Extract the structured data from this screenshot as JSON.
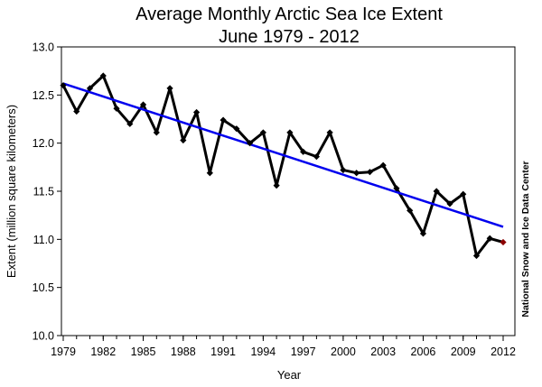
{
  "chart_data": {
    "type": "line",
    "title": "Average Monthly Arctic Sea Ice Extent",
    "subtitle": "June 1979 - 2012",
    "xlabel": "Year",
    "ylabel": "Extent (million square kilometers)",
    "credit": "National Snow and Ice Data Center",
    "xlim": [
      1979,
      2012
    ],
    "ylim": [
      10.0,
      13.0
    ],
    "x_ticks": [
      1979,
      1982,
      1985,
      1988,
      1991,
      1994,
      1997,
      2000,
      2003,
      2006,
      2009,
      2012
    ],
    "y_ticks": [
      "10.0",
      "10.5",
      "11.0",
      "11.5",
      "12.0",
      "12.5",
      "13.0"
    ],
    "grid": false,
    "x": [
      1979,
      1980,
      1981,
      1982,
      1983,
      1984,
      1985,
      1986,
      1987,
      1988,
      1989,
      1990,
      1991,
      1992,
      1993,
      1994,
      1995,
      1996,
      1997,
      1998,
      1999,
      2000,
      2001,
      2002,
      2003,
      2004,
      2005,
      2006,
      2007,
      2008,
      2009,
      2010,
      2011,
      2012
    ],
    "series": [
      {
        "values": [
          12.6,
          12.33,
          12.57,
          12.7,
          12.36,
          12.2,
          12.4,
          12.11,
          12.57,
          12.03,
          12.32,
          11.69,
          12.24,
          12.15,
          12.0,
          12.11,
          11.56,
          12.11,
          11.91,
          11.86,
          12.11,
          11.72,
          11.69,
          11.7,
          11.77,
          11.53,
          11.3,
          11.06,
          11.5,
          11.37,
          11.47,
          10.83,
          11.01,
          10.97
        ],
        "color": "#000000",
        "last_point_color": "#8b0000"
      }
    ],
    "trend": {
      "x": [
        1979,
        2012
      ],
      "values": [
        12.62,
        11.13
      ],
      "color": "#0000ee"
    }
  }
}
